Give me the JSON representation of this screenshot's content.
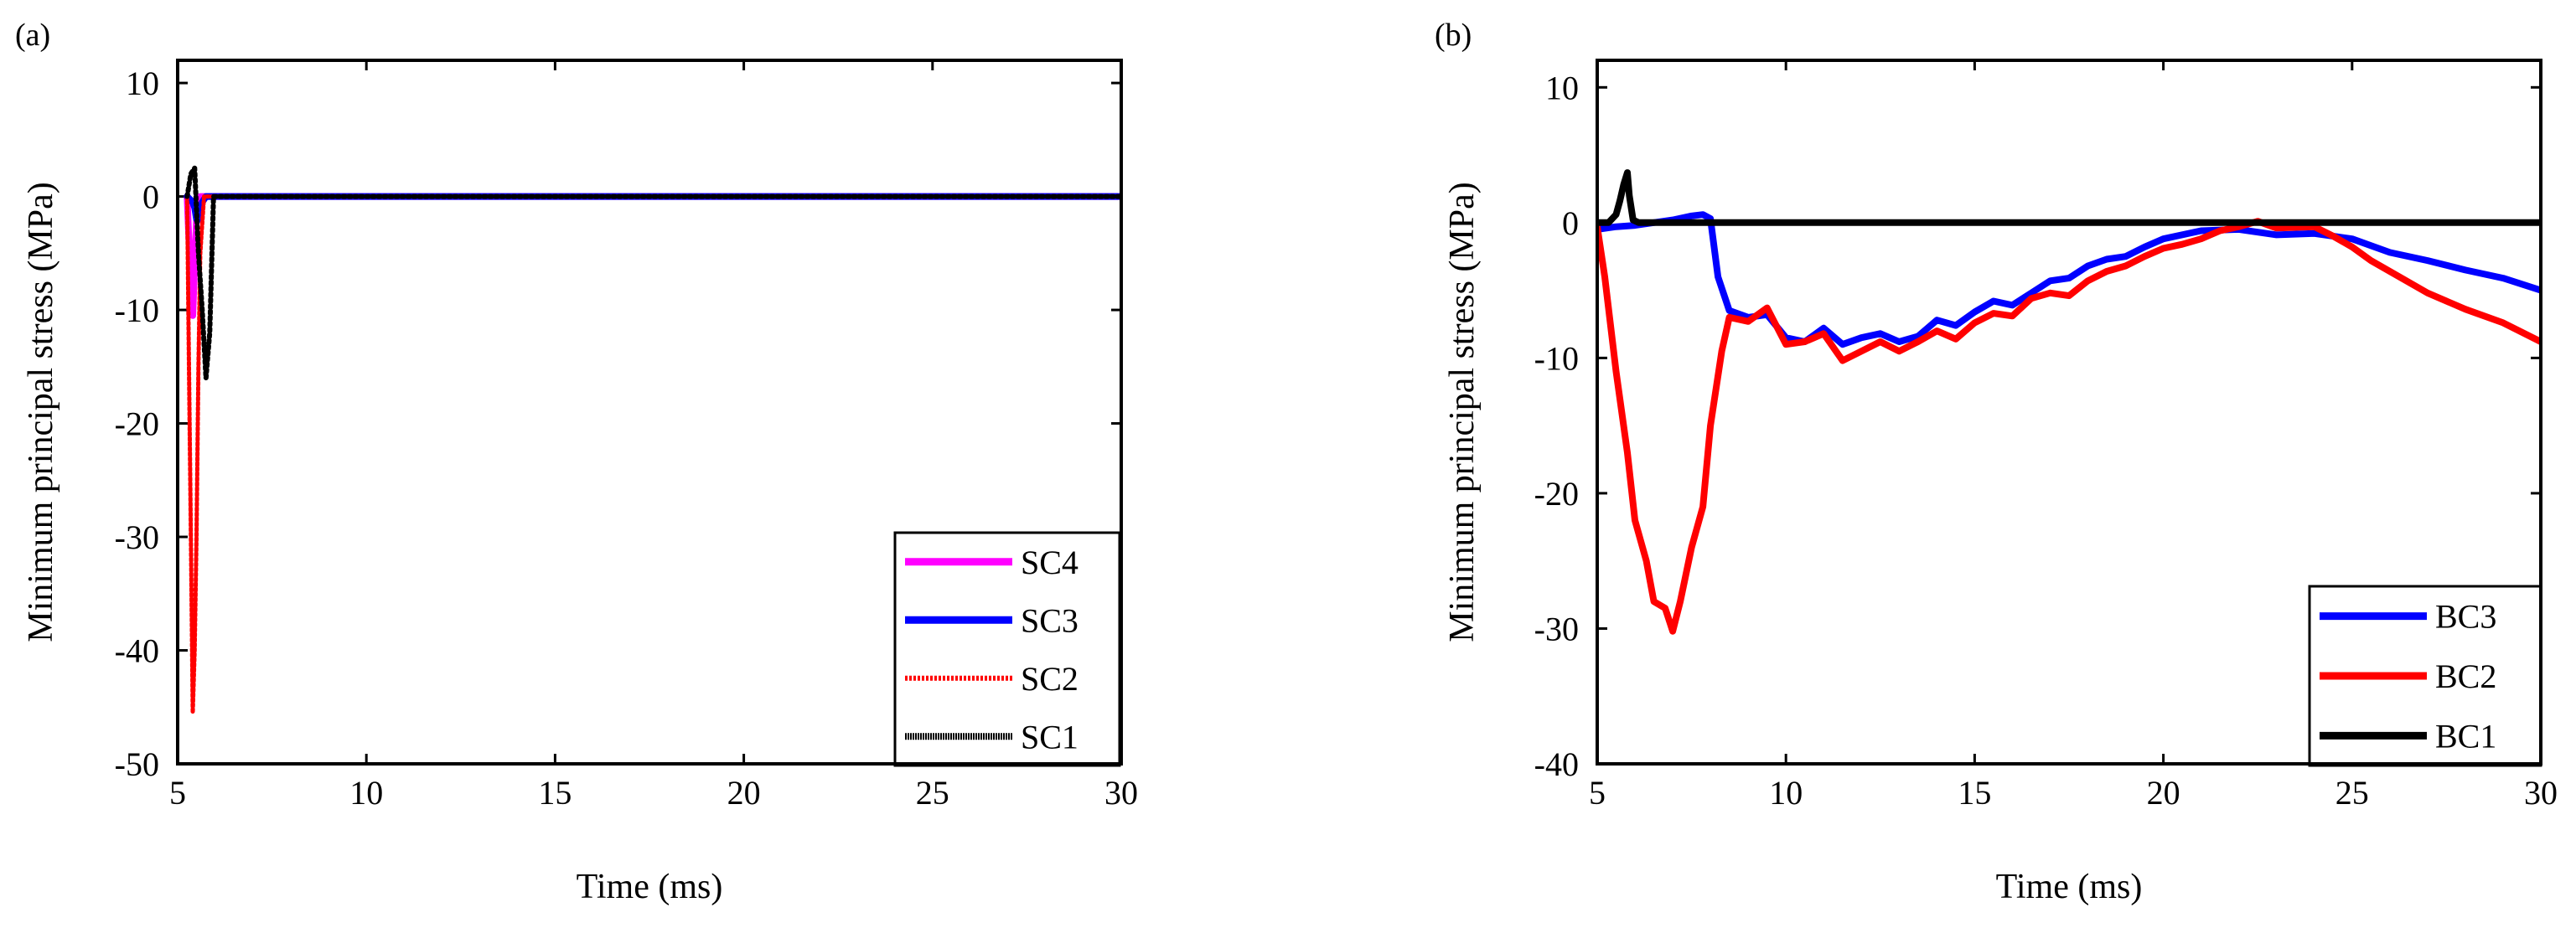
{
  "chart_data": [
    {
      "type": "line",
      "panel_label": "(a)",
      "xlabel": "Time (ms)",
      "ylabel": "Minimum principal stress (MPa)",
      "xlim": [
        5,
        30
      ],
      "ylim": [
        -50,
        12
      ],
      "xticks": [
        5,
        10,
        15,
        20,
        25,
        30
      ],
      "yticks": [
        10,
        0,
        -10,
        -20,
        -30,
        -40,
        -50
      ],
      "xtick_labels": [
        "5",
        "10",
        "15",
        "20",
        "25",
        "30"
      ],
      "ytick_labels": [
        "10",
        "0",
        "-10",
        "-20",
        "-30",
        "-40",
        "-50"
      ],
      "legend_position": "bottom-right",
      "series": [
        {
          "name": "SC4",
          "color": "#ff00ff",
          "style": "thick",
          "x": [
            5.25,
            5.3,
            5.35,
            5.4,
            5.45,
            5.5,
            5.6,
            30
          ],
          "y": [
            0,
            -4,
            -8,
            -10.5,
            -6,
            -2,
            0,
            0
          ]
        },
        {
          "name": "SC3",
          "color": "#0000ff",
          "style": "thick",
          "x": [
            5.25,
            5.4,
            5.45,
            5.5,
            5.55,
            5.6,
            5.65,
            5.75,
            30
          ],
          "y": [
            0,
            -0.5,
            -1,
            -2,
            -1.5,
            -2,
            -0.5,
            0,
            0
          ]
        },
        {
          "name": "SC2",
          "color": "#ff0000",
          "style": "dotted-oscillating",
          "x": [
            5.25,
            5.3,
            5.35,
            5.4,
            5.45,
            5.5,
            5.55,
            5.6,
            5.7,
            30
          ],
          "y": [
            0,
            -15,
            -30,
            -45.5,
            -40,
            -30,
            -15,
            -5,
            0,
            0
          ]
        },
        {
          "name": "SC1",
          "color": "#000000",
          "style": "hatched-oscillating",
          "x": [
            5.25,
            5.35,
            5.45,
            5.55,
            5.65,
            5.75,
            5.85,
            5.95,
            30
          ],
          "y": [
            0,
            2,
            2.5,
            -5,
            -10,
            -16,
            -12,
            0,
            0
          ]
        }
      ]
    },
    {
      "type": "line",
      "panel_label": "(b)",
      "xlabel": "Time (ms)",
      "ylabel": "Minimum principal stress (MPa)",
      "xlim": [
        5,
        30
      ],
      "ylim": [
        -40,
        12
      ],
      "xticks": [
        5,
        10,
        15,
        20,
        25,
        30
      ],
      "yticks": [
        10,
        0,
        -10,
        -20,
        -30,
        -40
      ],
      "xtick_labels": [
        "5",
        "10",
        "15",
        "20",
        "25",
        "30"
      ],
      "ytick_labels": [
        "10",
        "0",
        "-10",
        "-20",
        "-30",
        "-40"
      ],
      "legend_position": "bottom-right",
      "series": [
        {
          "name": "BC3",
          "color": "#0000ff",
          "x": [
            5,
            5.5,
            6,
            6.5,
            7,
            7.5,
            7.8,
            8,
            8.2,
            8.5,
            9,
            9.5,
            10,
            10.5,
            11,
            11.5,
            12,
            12.5,
            13,
            13.5,
            14,
            14.5,
            15,
            15.5,
            16,
            16.5,
            17,
            17.5,
            18,
            18.5,
            19,
            19.5,
            20,
            21,
            22,
            23,
            24,
            25,
            26,
            27,
            28,
            29,
            30
          ],
          "y": [
            -0.5,
            -0.3,
            -0.2,
            0,
            0.2,
            0.5,
            0.6,
            0.3,
            -4,
            -6.5,
            -7,
            -6.8,
            -8.5,
            -8.8,
            -7.8,
            -9,
            -8.5,
            -8.2,
            -8.8,
            -8.4,
            -7.2,
            -7.6,
            -6.6,
            -5.8,
            -6.1,
            -5.2,
            -4.3,
            -4.1,
            -3.2,
            -2.7,
            -2.5,
            -1.8,
            -1.2,
            -0.6,
            -0.5,
            -0.9,
            -0.8,
            -1.2,
            -2.2,
            -2.8,
            -3.5,
            -4.1,
            -5
          ]
        },
        {
          "name": "BC2",
          "color": "#ff0000",
          "x": [
            5,
            5.2,
            5.5,
            5.8,
            6,
            6.3,
            6.5,
            6.8,
            7,
            7.2,
            7.5,
            7.8,
            8,
            8.3,
            8.5,
            9,
            9.5,
            10,
            10.5,
            11,
            11.5,
            12,
            12.5,
            13,
            13.5,
            14,
            14.5,
            15,
            15.5,
            16,
            16.5,
            17,
            17.5,
            18,
            18.5,
            19,
            19.5,
            20,
            20.5,
            21,
            21.5,
            22,
            22.5,
            23,
            24,
            24.5,
            25,
            25.5,
            26,
            27,
            28,
            29,
            30
          ],
          "y": [
            -0.3,
            -4,
            -11,
            -17,
            -22,
            -25,
            -28,
            -28.5,
            -30.2,
            -28,
            -24,
            -21,
            -15,
            -9.5,
            -7,
            -7.3,
            -6.3,
            -9,
            -8.8,
            -8.2,
            -10.2,
            -9.5,
            -8.8,
            -9.5,
            -8.8,
            -8,
            -8.6,
            -7.4,
            -6.7,
            -6.9,
            -5.6,
            -5.2,
            -5.4,
            -4.3,
            -3.6,
            -3.2,
            -2.5,
            -1.9,
            -1.6,
            -1.2,
            -0.6,
            -0.3,
            0.1,
            -0.4,
            -0.3,
            -1,
            -1.8,
            -2.8,
            -3.6,
            -5.2,
            -6.4,
            -7.4,
            -8.8
          ]
        },
        {
          "name": "BC1",
          "color": "#000000",
          "x": [
            5,
            5.3,
            5.5,
            5.6,
            5.7,
            5.8,
            5.85,
            5.95,
            6.1,
            30
          ],
          "y": [
            0,
            0,
            0.6,
            1.6,
            2.8,
            3.7,
            2,
            0.2,
            0,
            0
          ]
        }
      ]
    }
  ]
}
